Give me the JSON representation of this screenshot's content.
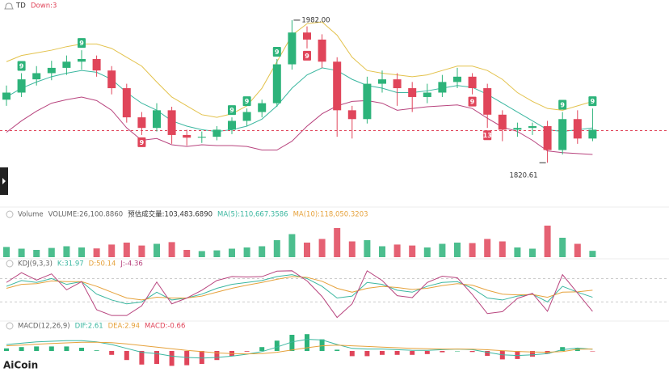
{
  "header": {
    "indicator": "TD",
    "status": "Down:3"
  },
  "logo": "AiCoin",
  "chart_data": [
    {
      "type": "candlestick",
      "ylim": [
        1808,
        1992
      ],
      "up_color": "#2db37a",
      "down_color": "#e0455a",
      "price_line": 1857,
      "candles": [
        [
          1892,
          1908,
          1885,
          1900
        ],
        [
          1900,
          1922,
          1895,
          1915
        ],
        [
          1915,
          1930,
          1908,
          1922
        ],
        [
          1922,
          1936,
          1914,
          1928
        ],
        [
          1928,
          1942,
          1920,
          1935
        ],
        [
          1935,
          1948,
          1926,
          1938
        ],
        [
          1938,
          1942,
          1918,
          1925
        ],
        [
          1925,
          1930,
          1898,
          1905
        ],
        [
          1905,
          1910,
          1866,
          1872
        ],
        [
          1872,
          1878,
          1852,
          1860
        ],
        [
          1860,
          1888,
          1856,
          1880
        ],
        [
          1880,
          1884,
          1842,
          1852
        ],
        [
          1852,
          1858,
          1840,
          1849
        ],
        [
          1849,
          1856,
          1843,
          1850
        ],
        [
          1850,
          1862,
          1846,
          1858
        ],
        [
          1858,
          1872,
          1853,
          1868
        ],
        [
          1868,
          1882,
          1862,
          1878
        ],
        [
          1878,
          1892,
          1872,
          1888
        ],
        [
          1888,
          1938,
          1884,
          1932
        ],
        [
          1932,
          1982,
          1926,
          1968
        ],
        [
          1968,
          1975,
          1950,
          1960
        ],
        [
          1960,
          1966,
          1928,
          1935
        ],
        [
          1935,
          1940,
          1850,
          1880
        ],
        [
          1880,
          1885,
          1848,
          1870
        ],
        [
          1870,
          1918,
          1865,
          1910
        ],
        [
          1910,
          1925,
          1900,
          1915
        ],
        [
          1915,
          1922,
          1885,
          1905
        ],
        [
          1905,
          1912,
          1878,
          1895
        ],
        [
          1895,
          1910,
          1888,
          1900
        ],
        [
          1900,
          1920,
          1895,
          1912
        ],
        [
          1912,
          1928,
          1905,
          1918
        ],
        [
          1918,
          1922,
          1898,
          1905
        ],
        [
          1905,
          1910,
          1860,
          1875
        ],
        [
          1875,
          1880,
          1845,
          1858
        ],
        [
          1858,
          1866,
          1850,
          1860
        ],
        [
          1860,
          1866,
          1852,
          1862
        ],
        [
          1862,
          1868,
          1820.61,
          1835
        ],
        [
          1835,
          1878,
          1830,
          1870
        ],
        [
          1870,
          1880,
          1842,
          1848
        ],
        [
          1848,
          1882,
          1845,
          1858
        ]
      ],
      "series": [
        {
          "name": "upper",
          "color": "#e3c24c",
          "values": [
            1935,
            1942,
            1945,
            1948,
            1952,
            1955,
            1955,
            1950,
            1940,
            1930,
            1912,
            1895,
            1885,
            1875,
            1872,
            1876,
            1885,
            1905,
            1935,
            1965,
            1978,
            1980,
            1965,
            1940,
            1925,
            1922,
            1920,
            1918,
            1920,
            1925,
            1930,
            1930,
            1925,
            1915,
            1900,
            1890,
            1882,
            1880,
            1885,
            1890
          ]
        },
        {
          "name": "middle",
          "color": "#3bb7a0",
          "values": [
            1895,
            1905,
            1912,
            1918,
            1922,
            1925,
            1923,
            1915,
            1900,
            1888,
            1880,
            1868,
            1862,
            1858,
            1856,
            1858,
            1862,
            1870,
            1885,
            1905,
            1920,
            1928,
            1925,
            1915,
            1908,
            1905,
            1900,
            1900,
            1902,
            1905,
            1908,
            1906,
            1898,
            1888,
            1878,
            1868,
            1858,
            1856,
            1858,
            1860
          ]
        },
        {
          "name": "lower",
          "color": "#b8447e",
          "values": [
            1855,
            1868,
            1879,
            1888,
            1892,
            1895,
            1891,
            1880,
            1860,
            1846,
            1848,
            1841,
            1839,
            1841,
            1840,
            1840,
            1839,
            1835,
            1835,
            1845,
            1862,
            1876,
            1885,
            1890,
            1891,
            1888,
            1880,
            1882,
            1884,
            1885,
            1886,
            1882,
            1871,
            1861,
            1856,
            1846,
            1834,
            1832,
            1831,
            1830
          ]
        }
      ],
      "annotations": [
        {
          "value": 1982,
          "label": "1982.00"
        },
        {
          "value": 1820.61,
          "label": "1820.61"
        }
      ],
      "td_marks": [
        {
          "label": "9",
          "kind": "up"
        },
        {
          "label": "9",
          "kind": "up"
        },
        {
          "label": "9",
          "kind": "down"
        },
        {
          "label": "9",
          "kind": "up"
        },
        {
          "label": "9",
          "kind": "up"
        },
        {
          "label": "9",
          "kind": "up"
        },
        {
          "label": "9",
          "kind": "down"
        },
        {
          "label": "9",
          "kind": "down"
        },
        {
          "label": "13",
          "kind": "down"
        },
        {
          "label": "9",
          "kind": "up"
        },
        {
          "label": "9",
          "kind": "up"
        }
      ]
    },
    {
      "type": "bar",
      "ylim": [
        0,
        140000
      ],
      "legend": [
        {
          "text": "Volume",
          "color": "#666"
        },
        {
          "text": "VOLUME:26,100.8860",
          "color": "#666"
        },
        {
          "text": "预估成交量:103,483.6890",
          "color": "#333"
        },
        {
          "text": "MA(5):110,667.3586",
          "color": "#3bb7a0"
        },
        {
          "text": "MA(10):118,050.3203",
          "color": "#e6a23c"
        }
      ],
      "values": [
        42000,
        35000,
        30000,
        38000,
        45000,
        40000,
        36000,
        52000,
        60000,
        48000,
        55000,
        62000,
        30000,
        25000,
        28000,
        35000,
        40000,
        45000,
        70000,
        95000,
        60000,
        75000,
        120000,
        65000,
        70000,
        45000,
        52000,
        48000,
        40000,
        55000,
        60000,
        58000,
        75000,
        65000,
        40000,
        35000,
        130000,
        80000,
        55000,
        26100.886
      ]
    },
    {
      "type": "line",
      "ylim": [
        -25,
        110
      ],
      "guides": [
        80,
        20
      ],
      "legend": [
        {
          "text": "KDJ(9,3,3)",
          "color": "#666"
        },
        {
          "text": "K:31.97",
          "color": "#3bb7a0"
        },
        {
          "text": "D:50.14",
          "color": "#e6a23c"
        },
        {
          "text": "J:-4.36",
          "color": "#b8447e"
        }
      ],
      "series": [
        {
          "name": "K",
          "color": "#3bb7a0",
          "values": [
            60,
            75,
            70,
            80,
            65,
            72,
            40,
            25,
            15,
            20,
            45,
            25,
            30,
            40,
            55,
            65,
            70,
            75,
            85,
            90,
            80,
            60,
            30,
            35,
            70,
            65,
            50,
            45,
            60,
            70,
            72,
            55,
            30,
            25,
            35,
            40,
            20,
            60,
            45,
            31.97
          ]
        },
        {
          "name": "D",
          "color": "#e6a23c",
          "values": [
            55,
            65,
            67,
            74,
            72,
            72,
            60,
            45,
            30,
            25,
            32,
            30,
            30,
            35,
            45,
            55,
            63,
            70,
            78,
            85,
            83,
            73,
            55,
            45,
            55,
            60,
            57,
            52,
            55,
            62,
            67,
            63,
            50,
            40,
            38,
            39,
            32,
            45,
            46,
            50.14
          ]
        },
        {
          "name": "J",
          "color": "#b8447e",
          "values": [
            70,
            95,
            76,
            92,
            51,
            72,
            0,
            -15,
            -15,
            10,
            71,
            15,
            30,
            50,
            75,
            85,
            84,
            85,
            99,
            100,
            74,
            34,
            -20,
            15,
            100,
            75,
            36,
            31,
            70,
            86,
            82,
            39,
            -10,
            -5,
            29,
            42,
            -4,
            90,
            43,
            -4.36
          ]
        }
      ]
    },
    {
      "type": "macd",
      "ylim": [
        -30,
        30
      ],
      "legend": [
        {
          "text": "MACD(12,26,9)",
          "color": "#666"
        },
        {
          "text": "DIF:2.61",
          "color": "#3bb7a0"
        },
        {
          "text": "DEA:2.94",
          "color": "#e6a23c"
        },
        {
          "text": "MACD:-0.66",
          "color": "#e0455a"
        }
      ],
      "histogram": [
        4,
        6,
        7,
        7,
        7,
        5,
        1,
        -6,
        -14,
        -21,
        -20,
        -23,
        -22,
        -20,
        -14,
        -8,
        -1,
        6,
        16,
        25,
        26,
        18,
        2,
        -8,
        -8,
        -6,
        -6,
        -6,
        -4.8,
        -2,
        0,
        -1.6,
        -7.6,
        -13,
        -12.4,
        -8.8,
        -4.2,
        6,
        3.8,
        -0.66
      ],
      "series": [
        {
          "name": "DIF",
          "color": "#3bb7a0",
          "values": [
            10,
            12,
            14,
            15,
            16,
            16,
            14,
            10,
            4,
            -2,
            -4,
            -8,
            -10,
            -11,
            -10,
            -8,
            -5,
            -1,
            6,
            14,
            18,
            17,
            10,
            4,
            3,
            3,
            2,
            1,
            1,
            2,
            3,
            2,
            -2,
            -6,
            -7,
            -6,
            -4,
            2,
            4.5,
            2.61
          ]
        },
        {
          "name": "DEA",
          "color": "#e6a23c",
          "values": [
            8,
            9,
            10.5,
            11.5,
            12.5,
            13.5,
            13.5,
            12.8,
            11,
            8.5,
            6,
            3.5,
            1,
            -1,
            -3,
            -4,
            -4.5,
            -4,
            -2,
            1.5,
            5,
            8,
            9,
            8,
            7,
            6,
            5,
            4,
            3.4,
            3,
            3,
            2.8,
            1.8,
            0.5,
            -0.8,
            -1.6,
            -1.9,
            -1,
            2.6,
            2.94
          ]
        }
      ]
    }
  ]
}
